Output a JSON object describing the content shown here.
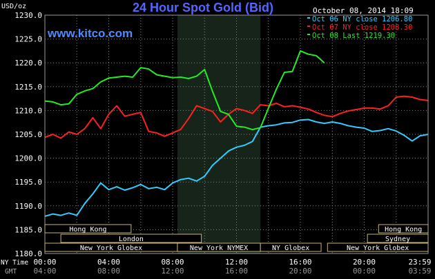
{
  "chart_data": {
    "type": "line",
    "title": "24 Hour Spot Gold (Bid)",
    "ylabel": "USD/oz",
    "watermark": "www.kitco.com",
    "timestamp": "October 08, 2014 18:09",
    "ylim": [
      1180,
      1230
    ],
    "y_ticks": [
      "1230.0",
      "1225.0",
      "1220.0",
      "1215.0",
      "1210.0",
      "1205.0",
      "1200.0",
      "1195.0",
      "1190.0",
      "1185.0",
      "1180.0"
    ],
    "x_row_ny_label": "NY Time",
    "x_row_gmt_label": "GMT",
    "x_ticks_ny": [
      "00:00",
      "04:00",
      "08:00",
      "12:00",
      "16:00",
      "20:00",
      "23:59"
    ],
    "x_ticks_gmt": [
      "04:00",
      "08:00",
      "12:00",
      "16:00",
      "20:00",
      "00:00",
      "03:59"
    ],
    "x_range_hours": [
      0,
      24
    ],
    "shaded_session_hours": [
      8.3,
      13.5
    ],
    "legend": [
      {
        "label": "Oct 06 NY close 1206.80",
        "color": "#33ccff"
      },
      {
        "label": "Oct 07 NY close 1208.30",
        "color": "#ff2020"
      },
      {
        "label": "Oct 08 Last 1219.30",
        "color": "#22ee22"
      }
    ],
    "markets": [
      {
        "label": "Hong Kong",
        "row": 0,
        "start": 0.0,
        "end": 5.4
      },
      {
        "label": "Hong Kong",
        "row": 0,
        "start": 20.9,
        "end": 24.0
      },
      {
        "label": "London",
        "row": 1,
        "start": 1.0,
        "end": 9.8
      },
      {
        "label": "Sydney",
        "row": 1,
        "start": 20.2,
        "end": 24.0
      },
      {
        "label": "New York Globex",
        "row": 2,
        "start": 0.0,
        "end": 8.3
      },
      {
        "label": "New York NYMEX",
        "row": 2,
        "start": 8.3,
        "end": 13.5
      },
      {
        "label": "NY Globex",
        "row": 2,
        "start": 13.5,
        "end": 17.3
      },
      {
        "label": "New York Globex",
        "row": 2,
        "start": 17.7,
        "end": 24.0
      }
    ],
    "series": [
      {
        "color": "#33ccff",
        "x": [
          0,
          0.5,
          1,
          1.5,
          2,
          2.5,
          3,
          3.5,
          4,
          4.5,
          5,
          5.5,
          6,
          6.5,
          7,
          7.5,
          8,
          8.5,
          9,
          9.5,
          10,
          10.5,
          11,
          11.5,
          12,
          12.5,
          13,
          13.5,
          14,
          14.5,
          15,
          15.5,
          16,
          16.5,
          17,
          17.5,
          18,
          18.5,
          19,
          19.5,
          20,
          20.5,
          21,
          21.5,
          22,
          22.5,
          23,
          23.5,
          24
        ],
        "values": [
          1187.8,
          1188.3,
          1188.0,
          1188.5,
          1188.0,
          1190.5,
          1192.5,
          1194.8,
          1193.4,
          1194.0,
          1193.3,
          1193.8,
          1194.5,
          1193.6,
          1193.9,
          1193.4,
          1194.8,
          1195.5,
          1195.8,
          1195.2,
          1196.2,
          1198.5,
          1200.0,
          1201.5,
          1202.3,
          1202.7,
          1203.5,
          1206.5,
          1206.8,
          1207.0,
          1207.4,
          1207.5,
          1208.0,
          1208.1,
          1207.6,
          1207.3,
          1207.6,
          1207.3,
          1206.8,
          1206.5,
          1206.3,
          1205.6,
          1205.8,
          1206.2,
          1205.7,
          1204.8,
          1203.6,
          1204.7,
          1205.0
        ]
      },
      {
        "color": "#ff2020",
        "x": [
          0,
          0.5,
          1,
          1.5,
          2,
          2.5,
          3,
          3.5,
          4,
          4.5,
          5,
          5.5,
          6,
          6.5,
          7,
          7.5,
          8,
          8.5,
          9,
          9.5,
          10,
          10.5,
          11,
          11.5,
          12,
          12.5,
          13,
          13.5,
          14,
          14.5,
          15,
          15.5,
          16,
          16.5,
          17,
          17.5,
          18,
          18.5,
          19,
          19.5,
          20,
          20.5,
          21,
          21.5,
          22,
          22.5,
          23,
          23.5,
          24
        ],
        "values": [
          1204.4,
          1205.0,
          1204.2,
          1205.5,
          1205.0,
          1206.2,
          1208.5,
          1206.2,
          1209.2,
          1211.0,
          1208.8,
          1209.2,
          1209.6,
          1205.6,
          1205.3,
          1204.6,
          1205.3,
          1206.0,
          1208.3,
          1211.0,
          1210.4,
          1209.8,
          1207.6,
          1209.2,
          1210.4,
          1210.0,
          1209.4,
          1211.2,
          1211.0,
          1211.5,
          1210.8,
          1211.0,
          1210.7,
          1210.3,
          1209.6,
          1209.0,
          1208.7,
          1209.4,
          1209.9,
          1210.2,
          1210.5,
          1210.5,
          1210.3,
          1211.0,
          1212.8,
          1213.0,
          1212.8,
          1212.3,
          1212.1
        ]
      },
      {
        "color": "#22ee22",
        "x": [
          0,
          0.5,
          1,
          1.5,
          2,
          2.5,
          3,
          3.5,
          4,
          4.5,
          5,
          5.5,
          6,
          6.5,
          7,
          7.5,
          8,
          8.5,
          9,
          9.5,
          10,
          10.5,
          11,
          11.5,
          12,
          12.5,
          13,
          13.5,
          14,
          14.5,
          15,
          15.5,
          16,
          16.5,
          17,
          17.5
        ],
        "values": [
          1212.0,
          1211.8,
          1211.2,
          1211.4,
          1213.4,
          1214.1,
          1214.6,
          1216.0,
          1216.8,
          1217.0,
          1217.2,
          1217.0,
          1219.0,
          1218.7,
          1217.5,
          1217.2,
          1216.9,
          1217.0,
          1216.7,
          1217.2,
          1218.6,
          1214.0,
          1209.8,
          1209.2,
          1206.7,
          1206.5,
          1206.0,
          1206.4,
          1210.5,
          1214.5,
          1218.0,
          1218.2,
          1222.5,
          1221.8,
          1221.5,
          1220.0
        ]
      }
    ]
  }
}
